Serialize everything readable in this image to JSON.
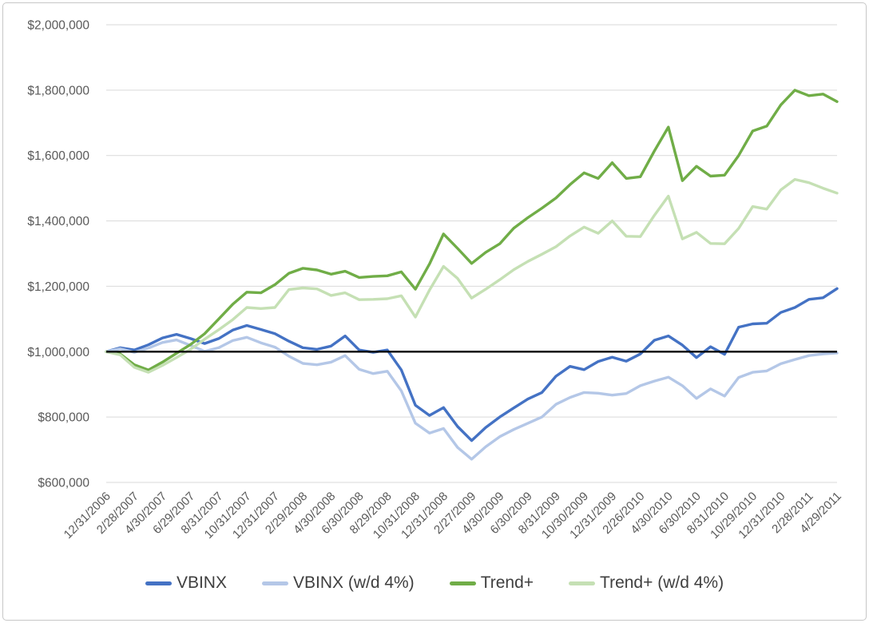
{
  "chart_data": {
    "type": "line",
    "title": "",
    "grid": true,
    "grid_color": "#d9d9d9",
    "axis_label_color": "#595959",
    "legend_position": "bottom",
    "legend_text_color": "#3f3f3f",
    "baseline": {
      "label": "initial-investment-line",
      "value": 1000000,
      "color": "#000000"
    },
    "y_axis": {
      "min": 600000,
      "max": 2000000,
      "step": 200000,
      "tick_labels": [
        "$600,000",
        "$800,000",
        "$1,000,000",
        "$1,200,000",
        "$1,400,000",
        "$1,600,000",
        "$1,800,000",
        "$2,000,000"
      ]
    },
    "x_axis": {
      "points_per_series": 53,
      "tick_every_n_points": 2,
      "tick_labels": [
        "12/31/2006",
        "2/28/2007",
        "4/30/2007",
        "6/29/2007",
        "8/31/2007",
        "10/31/2007",
        "12/31/2007",
        "2/29/2008",
        "4/30/2008",
        "6/30/2008",
        "8/29/2008",
        "10/31/2008",
        "12/31/2008",
        "2/27/2009",
        "4/30/2009",
        "6/30/2009",
        "8/31/2009",
        "10/30/2009",
        "12/31/2009",
        "2/26/2010",
        "4/30/2010",
        "6/30/2010",
        "8/31/2010",
        "10/29/2010",
        "12/31/2010",
        "2/28/2011",
        "4/29/2011"
      ]
    },
    "series": [
      {
        "name": "VBINX",
        "color": "#4472c4",
        "values": [
          1000000,
          1012000,
          1005000,
          1021000,
          1042000,
          1053000,
          1040000,
          1025000,
          1040000,
          1066000,
          1080000,
          1068000,
          1055000,
          1032000,
          1012000,
          1007000,
          1017000,
          1048000,
          1005000,
          998000,
          1005000,
          944000,
          836000,
          805000,
          829000,
          771000,
          728000,
          768000,
          800000,
          828000,
          855000,
          875000,
          925000,
          955000,
          945000,
          970000,
          983000,
          971000,
          993000,
          1035000,
          1048000,
          1020000,
          982000,
          1015000,
          992000,
          1075000,
          1085000,
          1087000,
          1120000,
          1135000,
          1160000,
          1165000,
          1193000
        ]
      },
      {
        "name": "VBINX (w/d 4%)",
        "color": "#b4c7e7",
        "values": [
          1000000,
          1009000,
          998000,
          1011000,
          1028000,
          1036000,
          1019000,
          1001000,
          1012000,
          1034000,
          1044000,
          1027000,
          1014000,
          986000,
          964000,
          960000,
          968000,
          988000,
          946000,
          933000,
          940000,
          880000,
          781000,
          751000,
          765000,
          707000,
          671000,
          709000,
          740000,
          762000,
          781000,
          800000,
          839000,
          860000,
          875000,
          873000,
          867000,
          872000,
          896000,
          910000,
          922000,
          896000,
          857000,
          886000,
          864000,
          921000,
          937000,
          941000,
          963000,
          976000,
          988000,
          993000,
          996000
        ]
      },
      {
        "name": "Trend+",
        "color": "#70ad47",
        "values": [
          1000000,
          993000,
          960000,
          944000,
          968000,
          995000,
          1022000,
          1055000,
          1100000,
          1145000,
          1182000,
          1180000,
          1205000,
          1240000,
          1255000,
          1250000,
          1237000,
          1246000,
          1227000,
          1230000,
          1232000,
          1244000,
          1191000,
          1268000,
          1360000,
          1316000,
          1270000,
          1304000,
          1330000,
          1378000,
          1410000,
          1439000,
          1470000,
          1511000,
          1547000,
          1530000,
          1578000,
          1530000,
          1535000,
          1614000,
          1687000,
          1523000,
          1567000,
          1537000,
          1540000,
          1600000,
          1675000,
          1690000,
          1755000,
          1800000,
          1783000,
          1788000,
          1765000
        ]
      },
      {
        "name": "Trend+ (w/d 4%)",
        "color": "#c5e0b4",
        "values": [
          1000000,
          990000,
          952000,
          937000,
          958000,
          982000,
          1007000,
          1038000,
          1067000,
          1098000,
          1135000,
          1132000,
          1135000,
          1190000,
          1195000,
          1192000,
          1172000,
          1180000,
          1159000,
          1160000,
          1162000,
          1171000,
          1106000,
          1188000,
          1261000,
          1224000,
          1164000,
          1191000,
          1220000,
          1251000,
          1276000,
          1298000,
          1321000,
          1354000,
          1381000,
          1362000,
          1400000,
          1353000,
          1352000,
          1417000,
          1476000,
          1345000,
          1365000,
          1331000,
          1330000,
          1377000,
          1444000,
          1436000,
          1495000,
          1527000,
          1517000,
          1500000,
          1485000
        ]
      }
    ]
  }
}
